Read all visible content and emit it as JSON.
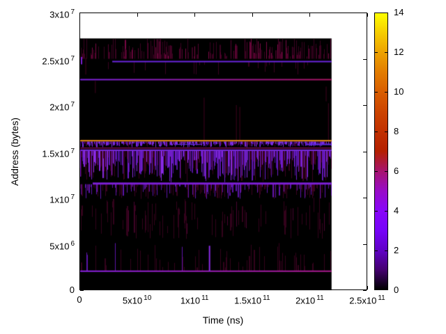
{
  "chart_data": {
    "type": "heatmap",
    "title": "",
    "xlabel": "Time (ns)",
    "ylabel": "Address (bytes)",
    "x_range": [
      0,
      250000000000.0
    ],
    "y_range": [
      0,
      30000000.0
    ],
    "x_ticks": [
      {
        "v": 0,
        "m": "0",
        "e": ""
      },
      {
        "v": 50000000000.0,
        "m": "5x10",
        "e": "10"
      },
      {
        "v": 100000000000.0,
        "m": "1x10",
        "e": "11"
      },
      {
        "v": 150000000000.0,
        "m": "1.5x10",
        "e": "11"
      },
      {
        "v": 200000000000.0,
        "m": "2x10",
        "e": "11"
      },
      {
        "v": 250000000000.0,
        "m": "2.5x10",
        "e": "11"
      }
    ],
    "y_ticks": [
      {
        "v": 0,
        "m": "0",
        "e": ""
      },
      {
        "v": 5000000.0,
        "m": "5x10",
        "e": "6"
      },
      {
        "v": 10000000.0,
        "m": "1x10",
        "e": "7"
      },
      {
        "v": 15000000.0,
        "m": "1.5x10",
        "e": "7"
      },
      {
        "v": 20000000.0,
        "m": "2x10",
        "e": "7"
      },
      {
        "v": 25000000.0,
        "m": "2.5x10",
        "e": "7"
      },
      {
        "v": 30000000.0,
        "m": "3x10",
        "e": "7"
      }
    ],
    "colorbar": {
      "range": [
        0,
        14
      ],
      "tick_values": [
        0,
        2,
        4,
        6,
        8,
        10,
        12,
        14
      ],
      "palette_stops": [
        {
          "v": 0,
          "c": "#000000"
        },
        {
          "v": 1,
          "c": "#44006F"
        },
        {
          "v": 2,
          "c": "#6001C7"
        },
        {
          "v": 3,
          "c": "#7603F9"
        },
        {
          "v": 4,
          "c": "#8806F9"
        },
        {
          "v": 5,
          "c": "#980CC7"
        },
        {
          "v": 6,
          "c": "#A7146F"
        },
        {
          "v": 7,
          "c": "#B42000"
        },
        {
          "v": 8,
          "c": "#C13000"
        },
        {
          "v": 9,
          "c": "#CC4400"
        },
        {
          "v": 10,
          "c": "#D85D00"
        },
        {
          "v": 11,
          "c": "#E27C00"
        },
        {
          "v": 12,
          "c": "#ECA100"
        },
        {
          "v": 13,
          "c": "#F6CC00"
        },
        {
          "v": 14,
          "c": "#FFFF00"
        }
      ]
    },
    "background_color": "#000000",
    "data_extent": {
      "t": [
        0,
        219000000000.0
      ],
      "addr": [
        0,
        27200000.0
      ]
    },
    "hlines": [
      {
        "addr": 24700000.0,
        "t0": 28500000000.0,
        "t1": 219000000000.0,
        "colors": [
          "#6A25DF"
        ],
        "w": 2
      },
      {
        "addr": 22750000.0,
        "t0": 0,
        "t1": 219000000000.0,
        "colors": [
          "#7B22DD",
          "#A5145F"
        ],
        "w": 2
      },
      {
        "addr": 16150000.0,
        "t0": 0,
        "t1": 219000000000.0,
        "colors": [
          "#E89018"
        ],
        "w": 2
      },
      {
        "addr": 15750000.0,
        "t0": 197000000000.0,
        "t1": 219000000000.0,
        "colors": [
          "#5F2BE0"
        ],
        "w": 2
      },
      {
        "addr": 15750000.0,
        "t0": 82000000000.0,
        "t1": 106000000000.0,
        "colors": [
          "#5F2BE0"
        ],
        "w": 1
      },
      {
        "addr": 15350000.0,
        "t0": 0,
        "t1": 219000000000.0,
        "colors": [
          "#B5187A"
        ],
        "w": 1
      },
      {
        "addr": 15120000.0,
        "t0": 0,
        "t1": 219000000000.0,
        "colors": [
          "#7B2BE2"
        ],
        "w": 2
      },
      {
        "addr": 11520000.0,
        "t0": 11500000000.0,
        "t1": 219000000000.0,
        "colors": [
          "#7D1FD6"
        ],
        "w": 3
      },
      {
        "addr": 2050000.0,
        "t0": 0,
        "t1": 219000000000.0,
        "colors": [
          "#8A22E2",
          "#AA1A8C"
        ],
        "w": 2
      }
    ],
    "vlines": [
      {
        "t": 4300000000.0,
        "a0": 13330000.0,
        "a1": 15150000.0,
        "color": "#8A2BE2",
        "w": 2
      },
      {
        "t": 113000000000.0,
        "a0": 2050000.0,
        "a1": 4800000.0,
        "color": "#8A2BE2",
        "w": 2
      },
      {
        "t": 1800000000.0,
        "a0": 24400000.0,
        "a1": 25200000.0,
        "color": "#7D1FD6",
        "w": 2
      },
      {
        "t": 5500000000.0,
        "a0": 23300000.0,
        "a1": 25100000.0,
        "color": "#45031F",
        "w": 1
      }
    ],
    "streaks": [
      {
        "t": 13500000000.0,
        "a0": 21300000.0,
        "a1": 22600000.0,
        "color": "#40031E"
      },
      {
        "t": 108000000000.0,
        "a0": 16200000.0,
        "a1": 20800000.0,
        "color": "#40031E"
      },
      {
        "t": 136000000000.0,
        "a0": 16200000.0,
        "a1": 20000000.0,
        "color": "#40031E"
      },
      {
        "t": 139000000000.0,
        "a0": 16200000.0,
        "a1": 19800000.0,
        "color": "#40031E"
      },
      {
        "t": 214000000000.0,
        "a0": 20400000.0,
        "a1": 22000000.0,
        "color": "#40031E"
      },
      {
        "t": 216000000000.0,
        "a0": 16200000.0,
        "a1": 20200000.0,
        "color": "#40031E"
      }
    ],
    "noise_bands": [
      {
        "a0": 25000000.0,
        "a1": 27150000.0,
        "t0": 0,
        "t1": 219000000000.0,
        "anchor": "bottom",
        "density": 0.5,
        "h0": 250000.0,
        "h1": 2300000.0,
        "palette": [
          [
            "#3A0220",
            0.65
          ],
          [
            "#55032F",
            0.25
          ],
          [
            "#7A0845",
            0.1
          ]
        ]
      },
      {
        "a0": 23000000.0,
        "a1": 24650000.0,
        "t0": 0,
        "t1": 219000000000.0,
        "anchor": "top",
        "density": 0.07,
        "h0": 200000.0,
        "h1": 1400000.0,
        "palette": [
          [
            "#3A0220",
            1
          ]
        ]
      },
      {
        "a0": 15450000.0,
        "a1": 16050000.0,
        "t0": 0,
        "t1": 219000000000.0,
        "anchor": "top",
        "density": 0.85,
        "h0": 150000.0,
        "h1": 600000.0,
        "palette": [
          [
            "#7B2BE2",
            0.55
          ],
          [
            "#4A0896",
            0.2
          ],
          [
            "#3A0220",
            0.25
          ]
        ]
      },
      {
        "a0": 11600000.0,
        "a1": 15050000.0,
        "t0": 0,
        "t1": 219000000000.0,
        "anchor": "top",
        "density": 0.9,
        "h0": 500000.0,
        "h1": 3400000.0,
        "palette": [
          [
            "#6F1CC8",
            0.3
          ],
          [
            "#51129E",
            0.25
          ],
          [
            "#3A0220",
            0.3
          ],
          [
            "#8A2BE2",
            0.15
          ]
        ]
      },
      {
        "a0": 9700000.0,
        "a1": 11450000.0,
        "t0": 0,
        "t1": 219000000000.0,
        "anchor": "top",
        "density": 0.45,
        "h0": 200000.0,
        "h1": 1600000.0,
        "palette": [
          [
            "#5C14AA",
            0.4
          ],
          [
            "#3A0220",
            0.6
          ]
        ]
      },
      {
        "a0": 5500000.0,
        "a1": 10000000.0,
        "t0": 0,
        "t1": 219000000000.0,
        "anchor": "mix",
        "density": 0.2,
        "h0": 600000.0,
        "h1": 3400000.0,
        "palette": [
          [
            "#33021B",
            0.8
          ],
          [
            "#4A0530",
            0.2
          ]
        ]
      },
      {
        "a0": 2100000.0,
        "a1": 5300000.0,
        "t0": 0,
        "t1": 219000000000.0,
        "anchor": "bottom",
        "density": 0.13,
        "h0": 300000.0,
        "h1": 3000000.0,
        "palette": [
          [
            "#33021B",
            0.85
          ],
          [
            "#5C14AA",
            0.15
          ]
        ]
      }
    ]
  }
}
